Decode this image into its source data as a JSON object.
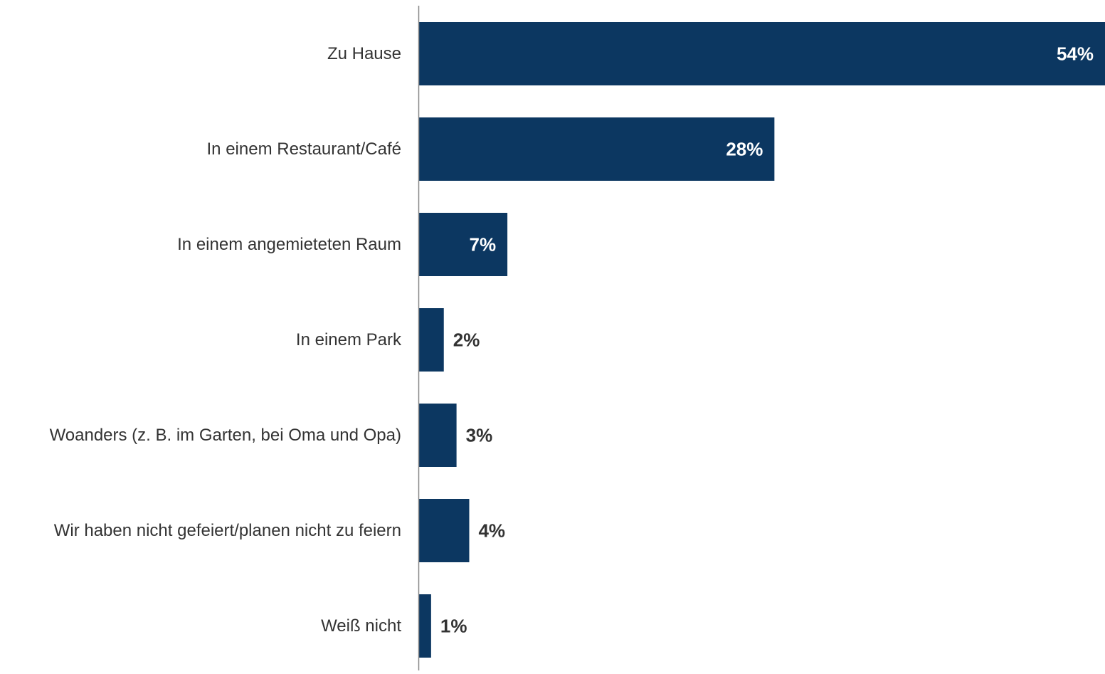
{
  "chart_data": {
    "type": "bar",
    "orientation": "horizontal",
    "title": "",
    "xlabel": "",
    "ylabel": "",
    "categories": [
      "Zu Hause",
      "In einem Restaurant/Café",
      "In einem angemieteten Raum",
      "In einem Park",
      "Woanders (z. B. im Garten, bei Oma und Opa)",
      "Wir haben nicht gefeiert/planen nicht zu feiern",
      "Weiß nicht"
    ],
    "values": [
      54,
      28,
      7,
      2,
      3,
      4,
      1
    ],
    "value_labels": [
      "54%",
      "28%",
      "7%",
      "2%",
      "3%",
      "4%",
      "1%"
    ],
    "unit": "%",
    "xlim": [
      0,
      54
    ],
    "grid": false,
    "legend": "none",
    "colors": {
      "bar": "#0c3761",
      "label_inside": "#ffffff",
      "label_outside": "#333333",
      "category_text": "#333333",
      "axis": "#888888"
    }
  }
}
